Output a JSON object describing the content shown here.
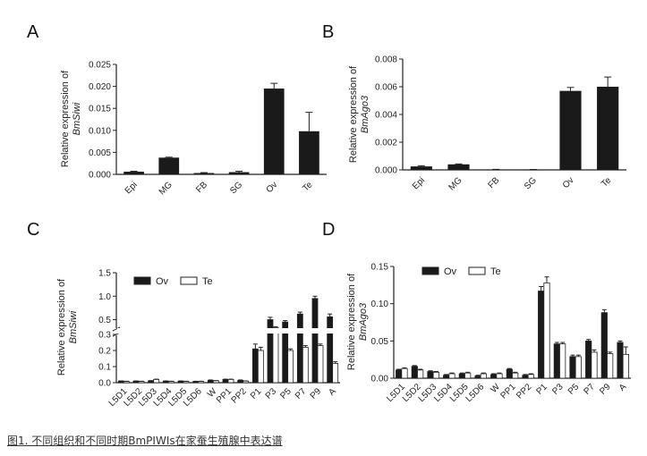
{
  "caption": "图1. 不同组织和不同时期BmPIWIs在家蚕生殖腺中表达谱",
  "colors": {
    "bar_dark": "#1a1a1a",
    "bar_light": "#ffffff",
    "axis": "#222222"
  },
  "chart_data": [
    {
      "panel": "A",
      "type": "bar",
      "ylabel_line1": "Relative expression of",
      "ylabel_line2": "BmSiwi",
      "categories": [
        "Epi",
        "MG",
        "FB",
        "SG",
        "Ov",
        "Te"
      ],
      "values": [
        0.0006,
        0.0038,
        0.0003,
        0.0005,
        0.0195,
        0.0098
      ],
      "errors": [
        0.0001,
        0.0001,
        0.0001,
        0.0002,
        0.0012,
        0.0043
      ],
      "ylim": [
        0,
        0.025
      ],
      "yticks": [
        "0.000",
        "0.005",
        "0.010",
        "0.015",
        "0.020",
        "0.025"
      ]
    },
    {
      "panel": "B",
      "type": "bar",
      "ylabel_line1": "Relative expression of",
      "ylabel_line2": "BmAgo3",
      "categories": [
        "Epi",
        "MG",
        "FB",
        "SG",
        "Ov",
        "Te"
      ],
      "values": [
        0.00025,
        0.0004,
        3e-05,
        2e-05,
        0.0057,
        0.006
      ],
      "errors": [
        5e-05,
        3e-05,
        1e-05,
        1e-05,
        0.00025,
        0.0007
      ],
      "ylim": [
        0,
        0.008
      ],
      "yticks": [
        "0.000",
        "0.002",
        "0.004",
        "0.006",
        "0.008"
      ]
    },
    {
      "panel": "C",
      "type": "bar",
      "ylabel_line1": "Relative expression of",
      "ylabel_line2": "BmSiwi",
      "legend": [
        "Ov",
        "Te"
      ],
      "categories": [
        "L5D1",
        "L5D2",
        "L5D3",
        "L5D4",
        "L5D5",
        "L5D6",
        "W",
        "PP1",
        "PP2",
        "P1",
        "P3",
        "P5",
        "P7",
        "P9",
        "A"
      ],
      "series": [
        {
          "name": "Ov",
          "values": [
            0.01,
            0.01,
            0.012,
            0.01,
            0.01,
            0.008,
            0.015,
            0.02,
            0.015,
            0.21,
            0.5,
            0.45,
            0.62,
            0.95,
            0.56
          ]
        },
        {
          "name": "Te",
          "values": [
            0.008,
            0.008,
            0.02,
            0.008,
            0.008,
            0.008,
            0.012,
            0.02,
            0.01,
            0.2,
            0.33,
            0.2,
            0.22,
            0.23,
            0.12
          ]
        }
      ],
      "errors": [
        [
          0.001,
          0.001,
          0.001,
          0.001,
          0.001,
          0.001,
          0.002,
          0.002,
          0.002,
          0.03,
          0.05,
          0.03,
          0.04,
          0.05,
          0.06
        ],
        [
          0.001,
          0.001,
          0.002,
          0.001,
          0.001,
          0.001,
          0.001,
          0.002,
          0.001,
          0.02,
          0.02,
          0.01,
          0.01,
          0.01,
          0.01
        ]
      ],
      "ylim": [
        0,
        1.5
      ],
      "axis_break": 0.3,
      "yticks_lower": [
        "0.0",
        "0.1",
        "0.2",
        "0.3"
      ],
      "yticks_upper": [
        "0.5",
        "1.0",
        "1.5"
      ]
    },
    {
      "panel": "D",
      "type": "bar",
      "ylabel_line1": "Relative expression of",
      "ylabel_line2": "BmAgo3",
      "legend": [
        "Ov",
        "Te"
      ],
      "categories": [
        "L5D1",
        "L5D2",
        "L5D3",
        "L5D4",
        "L5D5",
        "L5D6",
        "W",
        "PP1",
        "PP2",
        "P1",
        "P3",
        "P5",
        "P7",
        "P9",
        "A"
      ],
      "series": [
        {
          "name": "Ov",
          "values": [
            0.011,
            0.016,
            0.009,
            0.004,
            0.006,
            0.003,
            0.005,
            0.012,
            0.004,
            0.117,
            0.046,
            0.029,
            0.05,
            0.088,
            0.048
          ]
        },
        {
          "name": "Te",
          "values": [
            0.013,
            0.011,
            0.008,
            0.006,
            0.007,
            0.006,
            0.006,
            0.007,
            0.005,
            0.128,
            0.046,
            0.029,
            0.035,
            0.033,
            0.032
          ]
        }
      ],
      "errors": [
        [
          0.001,
          0.001,
          0.001,
          0.001,
          0.001,
          0.001,
          0.001,
          0.001,
          0.001,
          0.006,
          0.002,
          0.002,
          0.002,
          0.004,
          0.002
        ],
        [
          0.001,
          0.001,
          0.001,
          0.001,
          0.001,
          0.001,
          0.001,
          0.001,
          0.001,
          0.008,
          0.002,
          0.002,
          0.003,
          0.002,
          0.01
        ]
      ],
      "ylim": [
        0,
        0.15
      ],
      "yticks": [
        "0.00",
        "0.05",
        "0.10",
        "0.15"
      ]
    }
  ]
}
